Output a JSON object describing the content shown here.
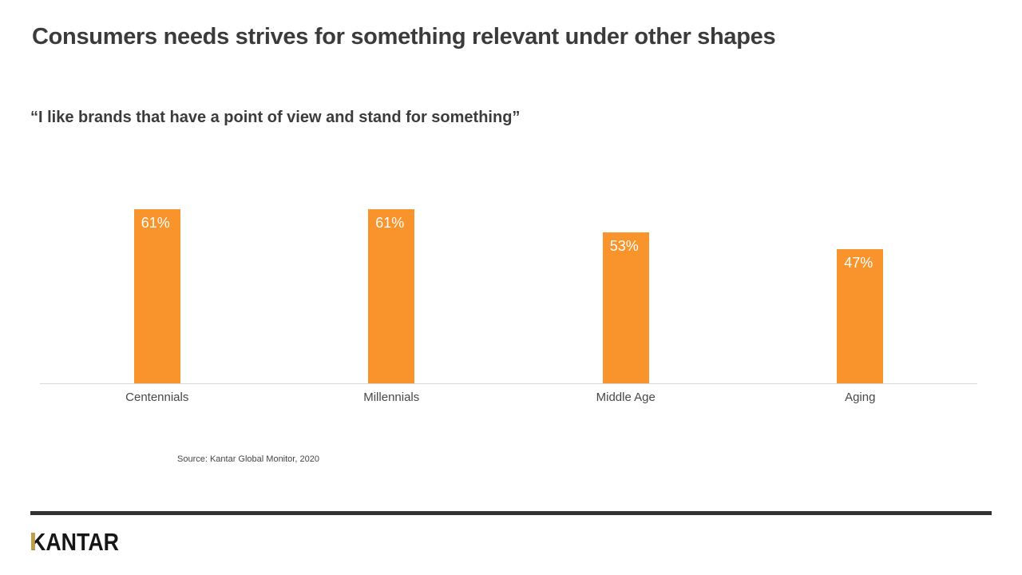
{
  "slide": {
    "title": "Consumers needs strives for something relevant under other shapes",
    "subtitle": "“I like brands that have a point of view and stand for something”",
    "source": "Source: Kantar Global Monitor, 2020"
  },
  "footer": {
    "brand": "KANTAR"
  },
  "chart_data": {
    "type": "bar",
    "title": "“I like brands that have a point of view and stand for something”",
    "categories": [
      "Centennials",
      "Millennials",
      "Middle Age",
      "Aging"
    ],
    "values": [
      61,
      61,
      53,
      47
    ],
    "value_labels": [
      "61%",
      "61%",
      "53%",
      "47%"
    ],
    "unit": "%",
    "ylim": [
      0,
      100
    ],
    "grid": false,
    "legend": false,
    "bar_color": "#F9932B",
    "value_label_color": "#FFFFFF",
    "axis_line_color": "#D9D9D9"
  },
  "colors": {
    "accent_orange": "#F9932B",
    "text_dark": "#3B3B3B",
    "divider_dark": "#323232",
    "logo_gold": "#BD9D48"
  }
}
